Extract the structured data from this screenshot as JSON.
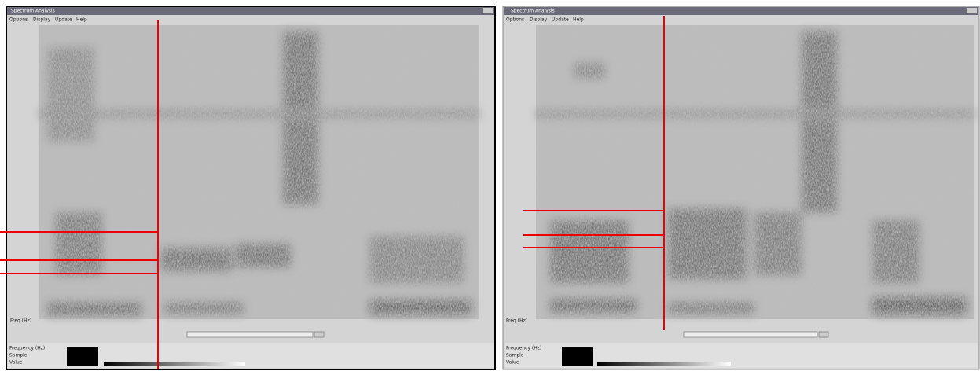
{
  "windows": [
    {
      "title": "Spectrum Analysis",
      "menu": [
        "Options",
        "Display",
        "Update",
        "Help"
      ],
      "info": [
        "Frequency (Hz)",
        "Sample",
        "Value"
      ],
      "axis_label": "Freq (Hz)"
    },
    {
      "title": "Spectrum Analysis",
      "menu": [
        "Options",
        "Display",
        "Update",
        "Help"
      ],
      "info": [
        "Frequency (Hz)",
        "Sample",
        "Value"
      ],
      "axis_label": "Freq (Hz)"
    }
  ]
}
